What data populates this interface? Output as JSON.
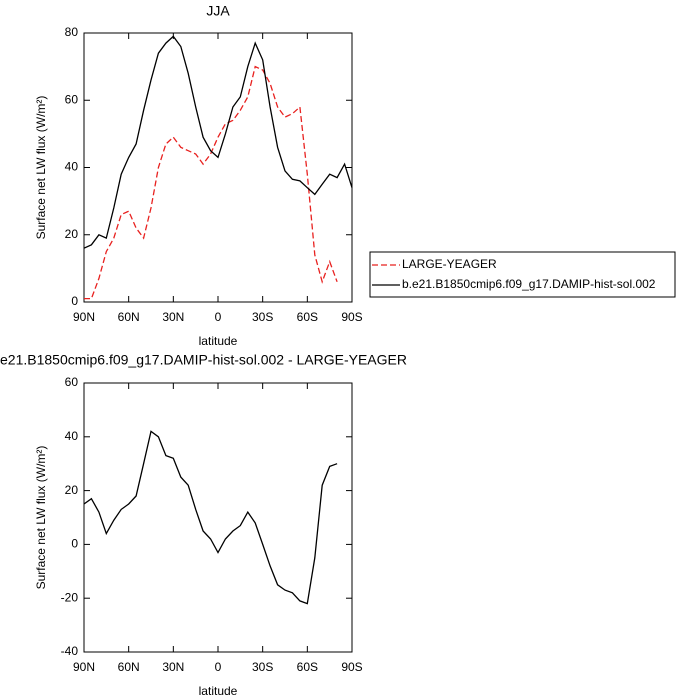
{
  "chart_data": [
    {
      "type": "line",
      "title": "JJA",
      "ylabel": "Surface net LW flux (W/m²)",
      "xlabel": "latitude",
      "x": [
        90,
        85,
        80,
        75,
        70,
        65,
        60,
        55,
        50,
        45,
        40,
        35,
        30,
        25,
        20,
        15,
        10,
        5,
        0,
        -5,
        -10,
        -15,
        -20,
        -25,
        -30,
        -35,
        -40,
        -45,
        -50,
        -55,
        -60,
        -65,
        -70,
        -75,
        -80,
        -85,
        -90
      ],
      "xlim": [
        90,
        -90
      ],
      "xticks": [
        {
          "value": 90,
          "label": "90N"
        },
        {
          "value": 60,
          "label": "60N"
        },
        {
          "value": 30,
          "label": "30N"
        },
        0,
        {
          "value": -30,
          "label": "30S"
        },
        {
          "value": -60,
          "label": "60S"
        },
        {
          "value": -90,
          "label": "90S"
        }
      ],
      "ylim": [
        0,
        80
      ],
      "yticks": [
        0,
        20,
        40,
        60,
        80
      ],
      "legend": "right",
      "series": [
        {
          "name": "LARGE-YEAGER",
          "color": "#e8211f",
          "dash": true,
          "values": [
            1,
            1,
            7,
            15,
            19,
            26,
            27,
            22,
            19,
            28,
            40,
            47,
            49,
            46,
            45,
            44,
            41,
            44,
            49,
            53,
            54,
            57,
            61,
            70,
            69,
            65,
            58,
            55,
            56,
            58,
            38,
            14,
            6,
            12,
            6,
            null,
            null
          ]
        },
        {
          "name": "b.e21.B1850cmip6.f09_g17.DAMIP-hist-sol.002",
          "color": "#000000",
          "dash": false,
          "values": [
            16,
            17,
            20,
            19,
            28,
            38,
            43,
            47,
            57,
            66,
            74,
            77,
            79,
            76,
            68,
            58,
            49,
            45,
            43,
            50,
            58,
            61,
            70,
            77,
            72,
            58,
            46,
            39,
            36.5,
            36,
            34,
            32,
            35,
            38,
            37,
            41,
            34
          ]
        }
      ]
    },
    {
      "type": "line",
      "title": "e21.B1850cmip6.f09_g17.DAMIP-hist-sol.002 - LARGE-YEAGER",
      "ylabel": "Surface net LW flux (W/m²)",
      "xlabel": "latitude",
      "x": [
        90,
        85,
        80,
        75,
        70,
        65,
        60,
        55,
        50,
        45,
        40,
        35,
        30,
        25,
        20,
        15,
        10,
        5,
        0,
        -5,
        -10,
        -15,
        -20,
        -25,
        -30,
        -35,
        -40,
        -45,
        -50,
        -55,
        -60,
        -65,
        -70,
        -75,
        -80,
        -85,
        -90
      ],
      "xlim": [
        90,
        -90
      ],
      "xticks": [
        {
          "value": 90,
          "label": "90N"
        },
        {
          "value": 60,
          "label": "60N"
        },
        {
          "value": 30,
          "label": "30N"
        },
        0,
        {
          "value": -30,
          "label": "30S"
        },
        {
          "value": -60,
          "label": "60S"
        },
        {
          "value": -90,
          "label": "90S"
        }
      ],
      "ylim": [
        -40,
        60
      ],
      "yticks": [
        -40,
        -20,
        0,
        20,
        40,
        60
      ],
      "series": [
        {
          "color": "#000000",
          "dash": false,
          "values": [
            15,
            17,
            12,
            4,
            9,
            13,
            15,
            18,
            30,
            42,
            40,
            33,
            32,
            25,
            22,
            13,
            5,
            2,
            -3,
            2,
            5,
            7,
            12,
            8,
            0,
            -8,
            -15,
            -17,
            -18,
            -21,
            -22,
            -5,
            22,
            29,
            30,
            null,
            null
          ]
        }
      ]
    }
  ]
}
